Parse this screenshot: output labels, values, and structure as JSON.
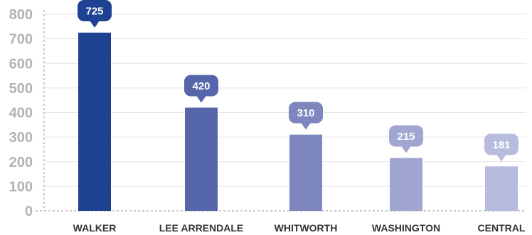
{
  "chart_data": {
    "type": "bar",
    "title": "",
    "xlabel": "",
    "ylabel": "",
    "categories": [
      "WALKER",
      "LEE ARRENDALE",
      "WHITWORTH",
      "WASHINGTON",
      "CENTRAL"
    ],
    "values": [
      725,
      420,
      310,
      215,
      181
    ],
    "data_labels": [
      "725",
      "420",
      "310",
      "215",
      "181"
    ],
    "ylim": [
      0,
      800
    ],
    "yticks": [
      0,
      100,
      200,
      300,
      400,
      500,
      600,
      700,
      800
    ],
    "ytick_labels": [
      "0",
      "100",
      "200",
      "300",
      "400",
      "500",
      "600",
      "700",
      "800"
    ],
    "bar_colors": [
      "#1f4191",
      "#5566aa",
      "#7d86bd",
      "#a0a6d0",
      "#b7bcdd"
    ],
    "grid": true,
    "grid_color": "#e6e6e6",
    "axis_color": "#9a9a9a",
    "label_style": "callout-bubble-above-bar"
  }
}
